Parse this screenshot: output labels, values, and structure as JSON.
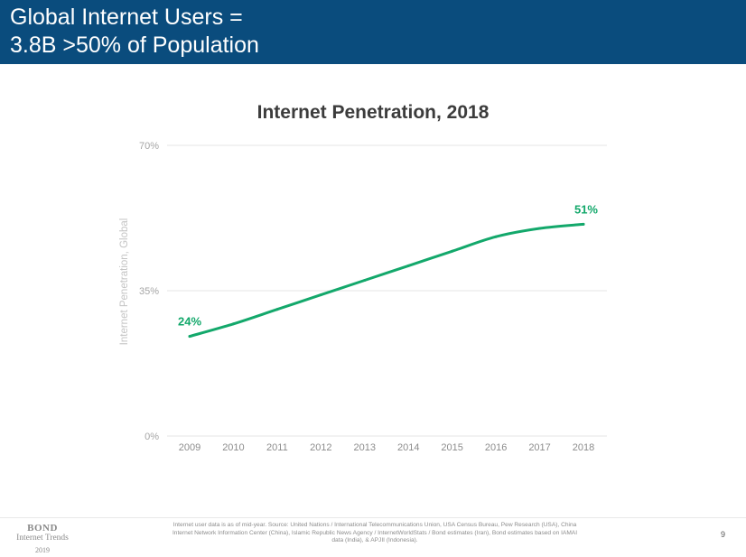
{
  "slide": {
    "title_lines": [
      "Global Internet Users =",
      "3.8B >50% of Population"
    ],
    "page_number": "9",
    "footnote": "Internet user data is as of mid-year.  Source: United Nations / International Telecommunications Union, USA Census Bureau, Pew Research (USA), China Internet Network Information Center (China), Islamic Republic News Agency / InternetWorldStats / Bond estimates (Iran), Bond estimates based on IAMAI data (India), & APJII (Indonesia).",
    "logo": {
      "name": "BOND",
      "subtitle": "Internet Trends",
      "year": "2019"
    },
    "header_color": "#0a4c7d"
  },
  "chart_data": {
    "type": "line",
    "title": "Internet Penetration, 2018",
    "ylabel": "Internet Penetration, Global",
    "xlabel": "",
    "x": [
      "2009",
      "2010",
      "2011",
      "2012",
      "2013",
      "2014",
      "2015",
      "2016",
      "2017",
      "2018"
    ],
    "series": [
      {
        "values": [
          24,
          27,
          30.5,
          34,
          37.5,
          41,
          44.5,
          48,
          50,
          51
        ],
        "color": "#13a86b"
      }
    ],
    "yticks": [
      "0%",
      "35%",
      "70%"
    ],
    "ylim": [
      0,
      70
    ],
    "data_labels": [
      {
        "x": "2009",
        "text": "24%"
      },
      {
        "x": "2018",
        "text": "51%"
      }
    ],
    "grid": true,
    "legend": "none"
  }
}
